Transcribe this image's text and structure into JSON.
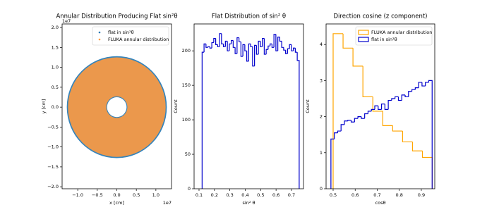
{
  "chart_data": [
    {
      "type": "scatter",
      "title": "Annular Distribution Producing Flat sin²θ",
      "x_label": "x [cm]",
      "y_label": "y [cm]",
      "x_offset_label": "1e7",
      "y_offset_label": "1e7",
      "xlim": [
        -1.4,
        1.4
      ],
      "ylim": [
        -2.05,
        2.09
      ],
      "xticks": [
        {
          "value": -1,
          "label": "−1.0"
        },
        {
          "value": -0.5,
          "label": "−0.5"
        },
        {
          "value": 0,
          "label": "0.0"
        },
        0.5,
        {
          "value": 1,
          "label": "1.0"
        }
      ],
      "yticks": [
        {
          "value": -2,
          "label": "−2.0"
        },
        {
          "value": -1.5,
          "label": "−1.5"
        },
        {
          "value": -1,
          "label": "−1.0"
        },
        {
          "value": -0.5,
          "label": "−0.5"
        },
        {
          "value": 0,
          "label": "0.0"
        },
        0.5,
        {
          "value": 1,
          "label": "1.0"
        },
        1.5,
        {
          "value": 2,
          "label": "2.0"
        }
      ],
      "legend": "upper right",
      "series": [
        {
          "name": "flat in sin²θ",
          "color": "#1f77b4",
          "inner_radius": 0.25,
          "outer_radius": 1.28
        },
        {
          "name": "FLUKA annular distribution",
          "color": "#ff9a40",
          "inner_radius": 0.27,
          "outer_radius": 1.25
        }
      ]
    },
    {
      "type": "histogram",
      "title": "Flat Distribution of sin² θ",
      "x_label": "sin² θ",
      "y_label": "Count",
      "xlim": [
        0.068,
        0.778
      ],
      "ylim": [
        0,
        239
      ],
      "xticks": [
        0.1,
        0.2,
        0.3,
        0.4,
        0.5,
        0.6,
        0.7
      ],
      "yticks": [
        0,
        50,
        100,
        150,
        200
      ],
      "series": [
        {
          "name": null,
          "color": "#0000cc",
          "bins": [
            0.12,
            0.1326,
            0.1452,
            0.1578,
            0.1704,
            0.183,
            0.1956,
            0.2082,
            0.2208,
            0.2334,
            0.246,
            0.2586,
            0.2712,
            0.2838,
            0.2964,
            0.309,
            0.3216,
            0.3342,
            0.3468,
            0.3594,
            0.372,
            0.3846,
            0.3972,
            0.4098,
            0.4224,
            0.435,
            0.4476,
            0.4602,
            0.4728,
            0.4854,
            0.498,
            0.5106,
            0.5232,
            0.5358,
            0.5484,
            0.561,
            0.5736,
            0.5862,
            0.5988,
            0.6114,
            0.624,
            0.6366,
            0.6492,
            0.6618,
            0.6744,
            0.687,
            0.6996,
            0.7122,
            0.7248,
            0.7374,
            0.75
          ],
          "values": [
            198,
            210,
            205,
            206,
            204,
            212,
            218,
            209,
            206,
            225,
            210,
            206,
            214,
            200,
            210,
            215,
            205,
            196,
            219,
            213,
            192,
            209,
            200,
            185,
            210,
            206,
            178,
            208,
            195,
            214,
            206,
            218,
            195,
            202,
            207,
            210,
            205,
            224,
            200,
            220,
            214,
            205,
            201,
            196,
            203,
            209,
            200,
            204,
            198,
            186
          ]
        }
      ]
    },
    {
      "type": "histogram",
      "title": "Direction cosine (z component)",
      "x_label": "cosθ",
      "y_label": "Count",
      "xlim": [
        0.468,
        0.961
      ],
      "ylim": [
        0,
        4.57
      ],
      "xticks": [
        0.5,
        0.6,
        0.7,
        0.8,
        0.9
      ],
      "yticks": [
        0,
        1,
        2,
        3,
        4
      ],
      "legend": "upper right",
      "series": [
        {
          "name": "FLUKA annular distribution",
          "color": "#ffa500",
          "bins": [
            0.5,
            0.545,
            0.59,
            0.635,
            0.68,
            0.725,
            0.77,
            0.815,
            0.86,
            0.905,
            0.95
          ],
          "values": [
            4.3,
            3.9,
            3.4,
            2.55,
            2.15,
            1.75,
            1.6,
            1.3,
            1.05,
            0.87
          ]
        },
        {
          "name": "flat in sin²θ",
          "color": "#0000cc",
          "bins": [
            0.49,
            0.5053,
            0.5206,
            0.5359,
            0.5512,
            0.5665,
            0.5818,
            0.5971,
            0.6124,
            0.6277,
            0.643,
            0.6583,
            0.6736,
            0.6889,
            0.7042,
            0.7195,
            0.7348,
            0.7501,
            0.7654,
            0.7807,
            0.796,
            0.8113,
            0.8266,
            0.8419,
            0.8572,
            0.8725,
            0.8878,
            0.9031,
            0.9184,
            0.9337,
            0.949
          ],
          "values": [
            1.38,
            1.55,
            1.6,
            1.78,
            1.88,
            1.9,
            1.85,
            1.95,
            2.0,
            1.95,
            2.08,
            2.15,
            2.2,
            2.3,
            2.2,
            2.35,
            2.2,
            2.45,
            2.5,
            2.55,
            2.45,
            2.6,
            2.55,
            2.7,
            2.75,
            2.8,
            2.95,
            2.85,
            2.95,
            3.0
          ]
        }
      ]
    }
  ]
}
